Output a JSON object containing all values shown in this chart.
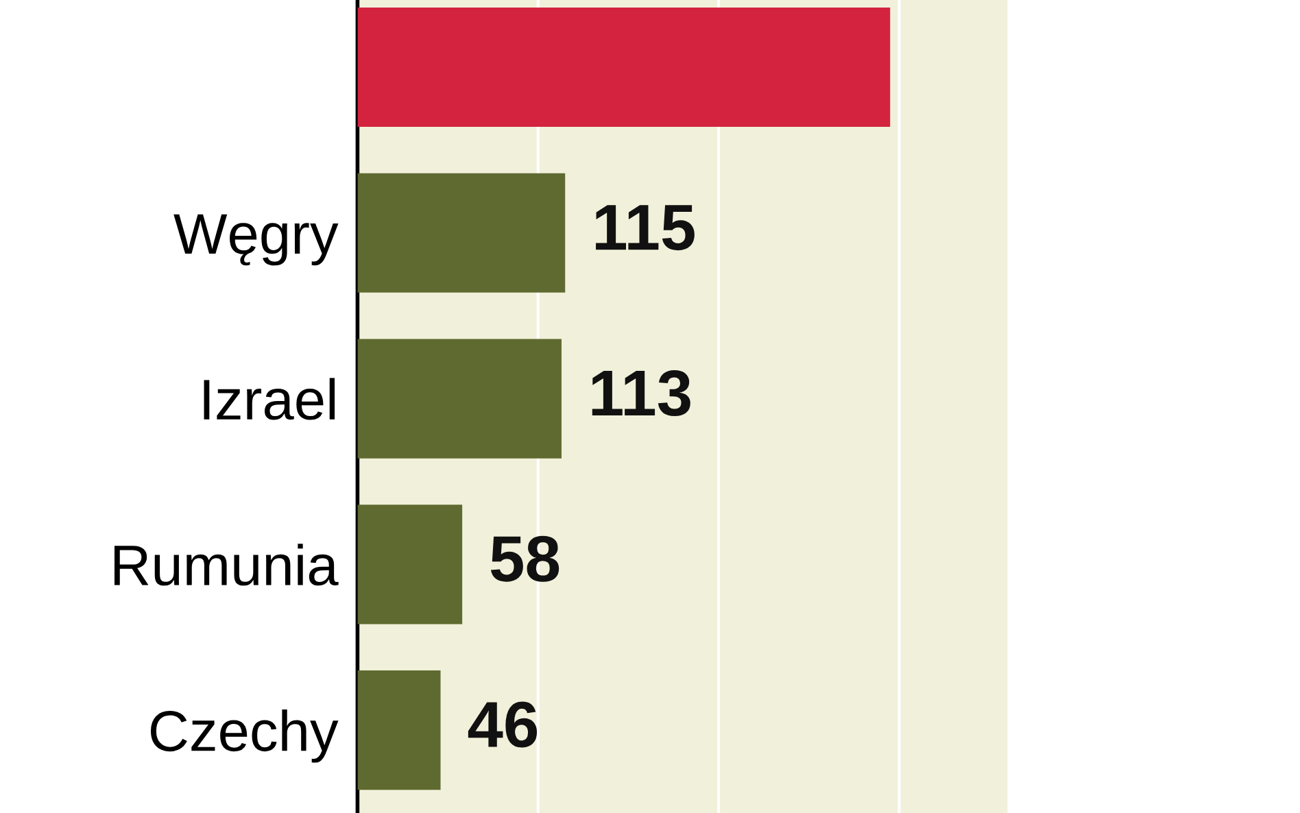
{
  "chart_data": {
    "type": "bar",
    "orientation": "horizontal",
    "categories": [
      null,
      "Węgry",
      "Izrael",
      "Rumunia",
      "Czechy"
    ],
    "values": [
      295,
      115,
      113,
      58,
      46
    ],
    "colors": [
      "#d3233f",
      "#5f6a30",
      "#5f6a30",
      "#5f6a30",
      "#5f6a30"
    ],
    "value_labels": [
      null,
      "115",
      "113",
      "58",
      "46"
    ],
    "xlim": [
      0,
      360
    ],
    "xticks": [
      {
        "value": 100,
        "label": null
      },
      {
        "value": 200,
        "label": null
      },
      {
        "value": 300,
        "label": null
      }
    ],
    "grid": "x",
    "tick_labels": "y"
  }
}
